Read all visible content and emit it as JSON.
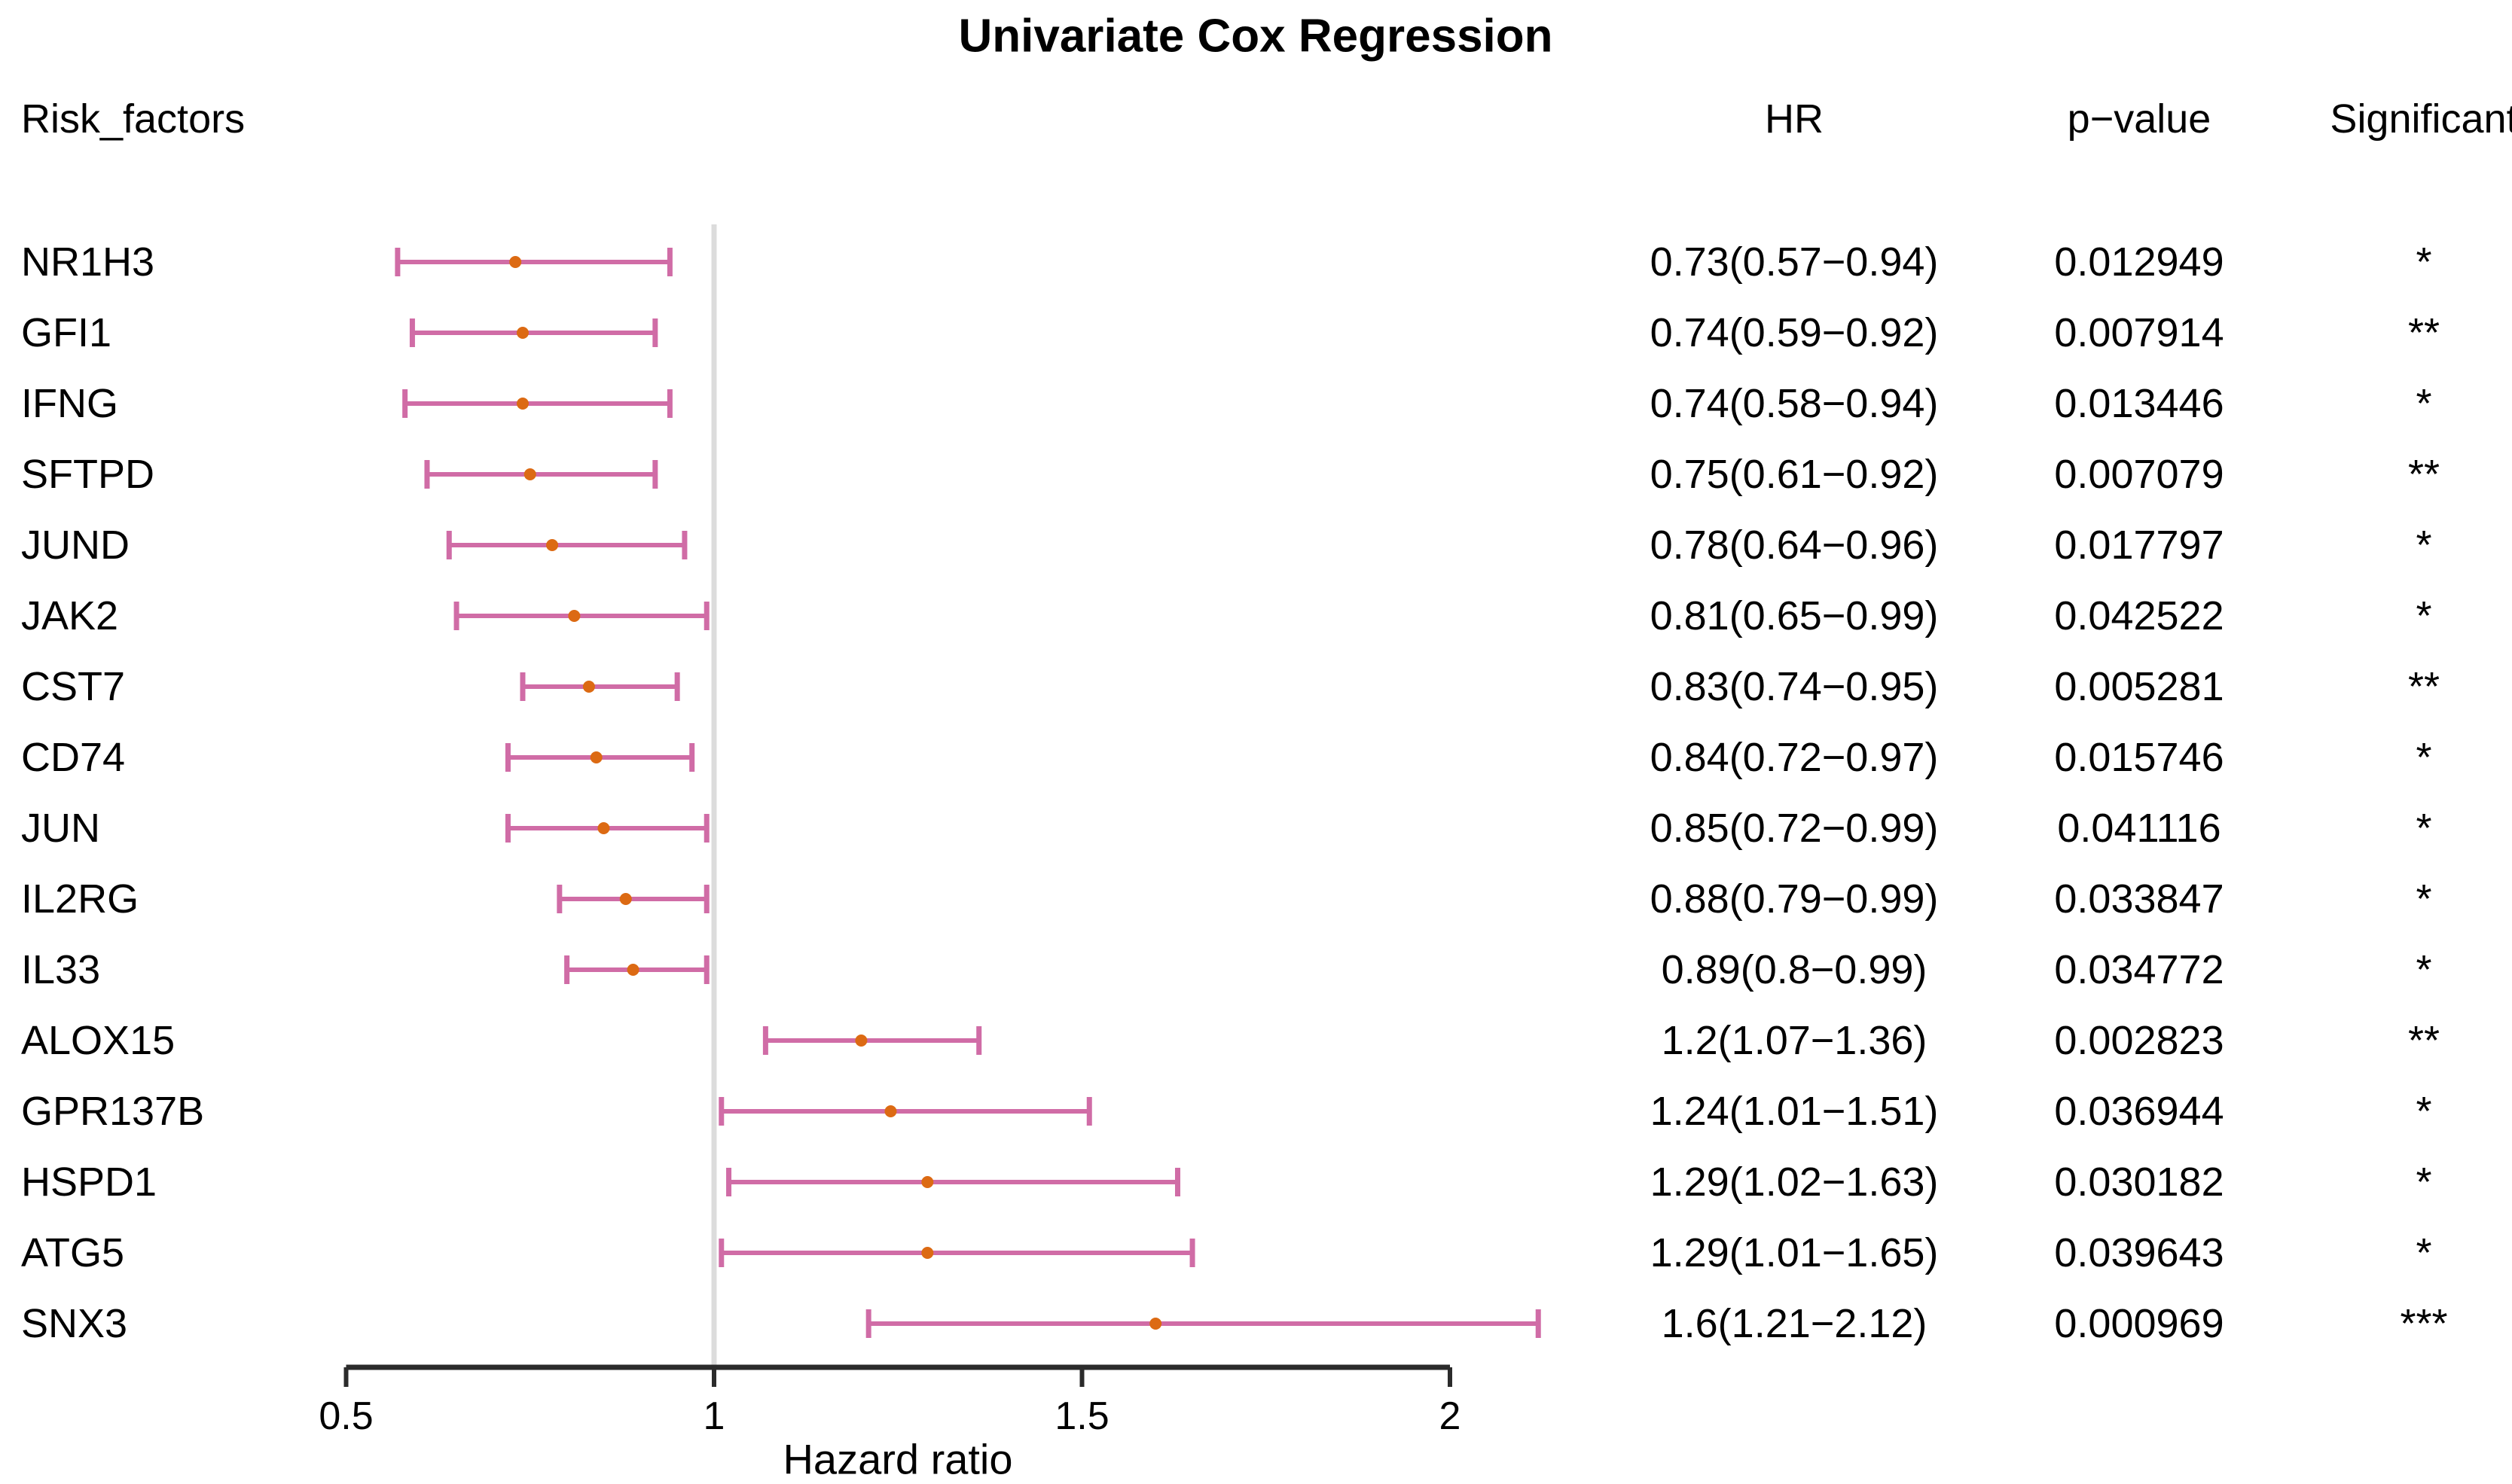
{
  "title": "Univariate Cox Regression",
  "columns": {
    "risk_factors": "Risk_factors",
    "hr": "HR",
    "p_value": "p−value",
    "significant": "Significant"
  },
  "xlabel": "Hazard ratio",
  "colors": {
    "ci_bar": "#d06ca6",
    "point": "#dc6a13",
    "reference_line": "#dcdcdc",
    "axis": "#2b2b2b",
    "text": "#000000"
  },
  "chart_data": {
    "type": "forest-plot",
    "x_axis_label": "Hazard ratio",
    "x_ticks": [
      0.5,
      1,
      1.5,
      2
    ],
    "x_tick_labels": [
      "0.5",
      "1",
      "1.5",
      "2"
    ],
    "x_range": [
      0.5,
      2.12
    ],
    "reference_line_x": 1,
    "rows": [
      {
        "risk_factor": "NR1H3",
        "hr": 0.73,
        "ci_low": 0.57,
        "ci_high": 0.94,
        "hr_label": "0.73(0.57−0.94)",
        "p_value": "0.012949",
        "significant": "*"
      },
      {
        "risk_factor": "GFI1",
        "hr": 0.74,
        "ci_low": 0.59,
        "ci_high": 0.92,
        "hr_label": "0.74(0.59−0.92)",
        "p_value": "0.007914",
        "significant": "**"
      },
      {
        "risk_factor": "IFNG",
        "hr": 0.74,
        "ci_low": 0.58,
        "ci_high": 0.94,
        "hr_label": "0.74(0.58−0.94)",
        "p_value": "0.013446",
        "significant": "*"
      },
      {
        "risk_factor": "SFTPD",
        "hr": 0.75,
        "ci_low": 0.61,
        "ci_high": 0.92,
        "hr_label": "0.75(0.61−0.92)",
        "p_value": "0.007079",
        "significant": "**"
      },
      {
        "risk_factor": "JUND",
        "hr": 0.78,
        "ci_low": 0.64,
        "ci_high": 0.96,
        "hr_label": "0.78(0.64−0.96)",
        "p_value": "0.017797",
        "significant": "*"
      },
      {
        "risk_factor": "JAK2",
        "hr": 0.81,
        "ci_low": 0.65,
        "ci_high": 0.99,
        "hr_label": "0.81(0.65−0.99)",
        "p_value": "0.042522",
        "significant": "*"
      },
      {
        "risk_factor": "CST7",
        "hr": 0.83,
        "ci_low": 0.74,
        "ci_high": 0.95,
        "hr_label": "0.83(0.74−0.95)",
        "p_value": "0.005281",
        "significant": "**"
      },
      {
        "risk_factor": "CD74",
        "hr": 0.84,
        "ci_low": 0.72,
        "ci_high": 0.97,
        "hr_label": "0.84(0.72−0.97)",
        "p_value": "0.015746",
        "significant": "*"
      },
      {
        "risk_factor": "JUN",
        "hr": 0.85,
        "ci_low": 0.72,
        "ci_high": 0.99,
        "hr_label": "0.85(0.72−0.99)",
        "p_value": "0.041116",
        "significant": "*"
      },
      {
        "risk_factor": "IL2RG",
        "hr": 0.88,
        "ci_low": 0.79,
        "ci_high": 0.99,
        "hr_label": "0.88(0.79−0.99)",
        "p_value": "0.033847",
        "significant": "*"
      },
      {
        "risk_factor": "IL33",
        "hr": 0.89,
        "ci_low": 0.8,
        "ci_high": 0.99,
        "hr_label": "0.89(0.8−0.99)",
        "p_value": "0.034772",
        "significant": "*"
      },
      {
        "risk_factor": "ALOX15",
        "hr": 1.2,
        "ci_low": 1.07,
        "ci_high": 1.36,
        "hr_label": "1.2(1.07−1.36)",
        "p_value": "0.002823",
        "significant": "**"
      },
      {
        "risk_factor": "GPR137B",
        "hr": 1.24,
        "ci_low": 1.01,
        "ci_high": 1.51,
        "hr_label": "1.24(1.01−1.51)",
        "p_value": "0.036944",
        "significant": "*"
      },
      {
        "risk_factor": "HSPD1",
        "hr": 1.29,
        "ci_low": 1.02,
        "ci_high": 1.63,
        "hr_label": "1.29(1.02−1.63)",
        "p_value": "0.030182",
        "significant": "*"
      },
      {
        "risk_factor": "ATG5",
        "hr": 1.29,
        "ci_low": 1.01,
        "ci_high": 1.65,
        "hr_label": "1.29(1.01−1.65)",
        "p_value": "0.039643",
        "significant": "*"
      },
      {
        "risk_factor": "SNX3",
        "hr": 1.6,
        "ci_low": 1.21,
        "ci_high": 2.12,
        "hr_label": "1.6(1.21−2.12)",
        "p_value": "0.000969",
        "significant": "***"
      }
    ]
  }
}
